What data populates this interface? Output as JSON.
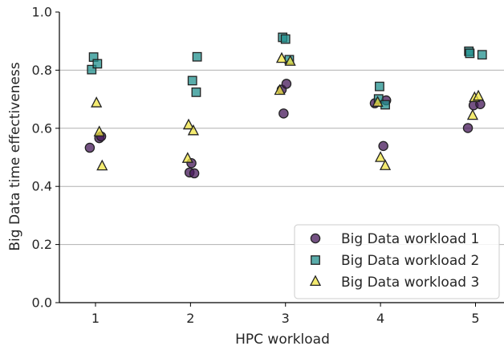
{
  "chart_data": {
    "type": "scatter",
    "title": "",
    "xlabel": "HPC workload",
    "ylabel": "Big Data time effectiveness",
    "xlim": [
      0.62,
      5.3
    ],
    "ylim": [
      0.0,
      1.0
    ],
    "x_ticks": [
      1,
      2,
      3,
      4,
      5
    ],
    "x_tick_labels": [
      "1",
      "2",
      "3",
      "4",
      "5"
    ],
    "y_ticks": [
      0.0,
      0.2,
      0.4,
      0.6,
      0.8,
      1.0
    ],
    "y_tick_labels": [
      "0.0",
      "0.2",
      "0.4",
      "0.6",
      "0.8",
      "1.0"
    ],
    "grid": "horizontal",
    "legend_position": "bottom-right",
    "series": [
      {
        "name": "Big Data workload 1",
        "marker": "circle",
        "color": "#46185a",
        "points": [
          {
            "x": 0.94,
            "y": 0.533
          },
          {
            "x": 1.04,
            "y": 0.566
          },
          {
            "x": 1.06,
            "y": 0.572
          },
          {
            "x": 1.99,
            "y": 0.448
          },
          {
            "x": 2.01,
            "y": 0.48
          },
          {
            "x": 2.04,
            "y": 0.445
          },
          {
            "x": 2.96,
            "y": 0.733
          },
          {
            "x": 2.98,
            "y": 0.651
          },
          {
            "x": 3.01,
            "y": 0.753
          },
          {
            "x": 3.94,
            "y": 0.686
          },
          {
            "x": 4.03,
            "y": 0.539
          },
          {
            "x": 4.06,
            "y": 0.696
          },
          {
            "x": 4.92,
            "y": 0.601
          },
          {
            "x": 4.98,
            "y": 0.679
          },
          {
            "x": 5.05,
            "y": 0.683
          }
        ]
      },
      {
        "name": "Big Data workload 2",
        "marker": "square",
        "color": "#21908d",
        "points": [
          {
            "x": 0.96,
            "y": 0.802
          },
          {
            "x": 0.98,
            "y": 0.845
          },
          {
            "x": 1.02,
            "y": 0.822
          },
          {
            "x": 2.02,
            "y": 0.764
          },
          {
            "x": 2.06,
            "y": 0.724
          },
          {
            "x": 2.07,
            "y": 0.846
          },
          {
            "x": 2.97,
            "y": 0.913
          },
          {
            "x": 3.0,
            "y": 0.907
          },
          {
            "x": 3.04,
            "y": 0.836
          },
          {
            "x": 3.98,
            "y": 0.701
          },
          {
            "x": 3.99,
            "y": 0.744
          },
          {
            "x": 4.05,
            "y": 0.681
          },
          {
            "x": 4.93,
            "y": 0.865
          },
          {
            "x": 4.94,
            "y": 0.858
          },
          {
            "x": 5.07,
            "y": 0.853
          }
        ]
      },
      {
        "name": "Big Data workload 3",
        "marker": "triangle",
        "color": "#f0e442",
        "points": [
          {
            "x": 1.01,
            "y": 0.686
          },
          {
            "x": 1.04,
            "y": 0.586
          },
          {
            "x": 1.07,
            "y": 0.469
          },
          {
            "x": 1.97,
            "y": 0.495
          },
          {
            "x": 1.98,
            "y": 0.61
          },
          {
            "x": 2.03,
            "y": 0.59
          },
          {
            "x": 2.94,
            "y": 0.729
          },
          {
            "x": 2.96,
            "y": 0.839
          },
          {
            "x": 3.05,
            "y": 0.829
          },
          {
            "x": 3.97,
            "y": 0.688
          },
          {
            "x": 4.0,
            "y": 0.498
          },
          {
            "x": 4.05,
            "y": 0.47
          },
          {
            "x": 4.97,
            "y": 0.643
          },
          {
            "x": 4.99,
            "y": 0.704
          },
          {
            "x": 5.03,
            "y": 0.709
          }
        ]
      }
    ]
  }
}
